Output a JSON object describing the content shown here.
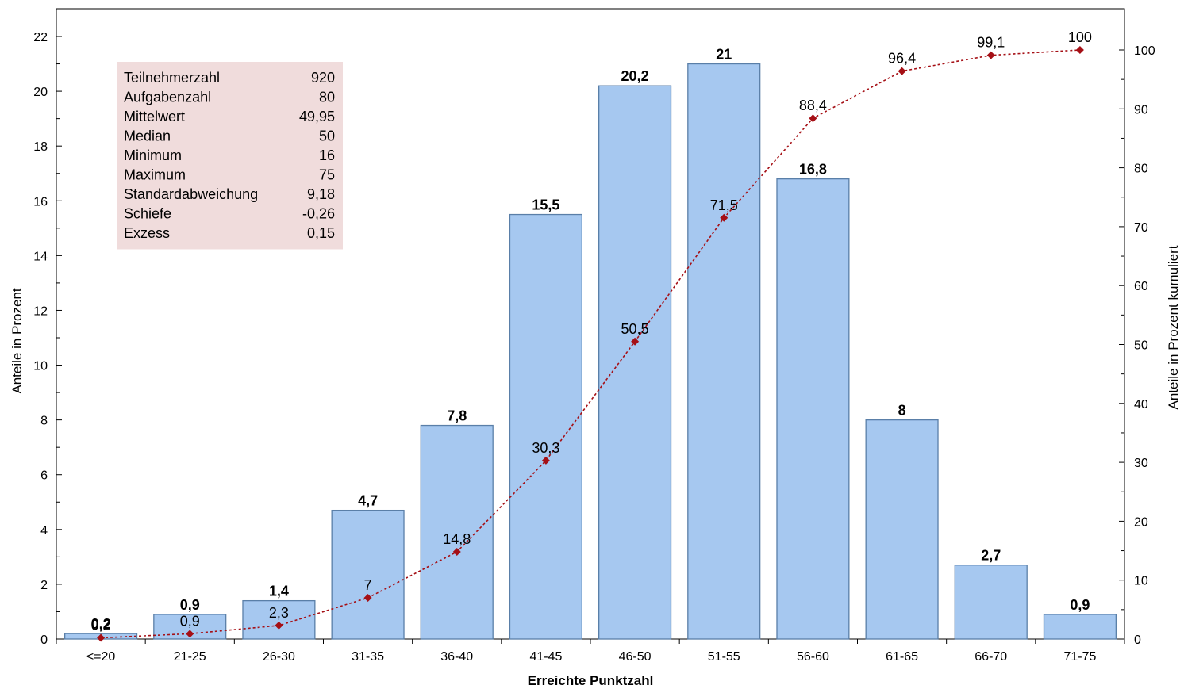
{
  "chart_data": {
    "type": "bar",
    "categories": [
      "<=20",
      "21-25",
      "26-30",
      "31-35",
      "36-40",
      "41-45",
      "46-50",
      "51-55",
      "56-60",
      "61-65",
      "66-70",
      "71-75"
    ],
    "series": [
      {
        "type": "bar",
        "axis": "left",
        "values": [
          0.2,
          0.9,
          1.4,
          4.7,
          7.8,
          15.5,
          20.2,
          21,
          16.8,
          8,
          2.7,
          0.9
        ],
        "labels": [
          "0,2",
          "0,9",
          "1,4",
          "4,7",
          "7,8",
          "15,5",
          "20,2",
          "21",
          "16,8",
          "8",
          "2,7",
          "0,9"
        ],
        "color": "#a6c8f0",
        "border_color": "#5a7fa8"
      },
      {
        "type": "line",
        "axis": "right",
        "values": [
          0.2,
          0.9,
          2.3,
          7,
          14.8,
          30.3,
          50.5,
          71.5,
          88.4,
          96.4,
          99.1,
          100
        ],
        "labels": [
          "0,2",
          "0,9",
          "2,3",
          "7",
          "14,8",
          "30,3",
          "50,5",
          "71,5",
          "88,4",
          "96,4",
          "99,1",
          "100"
        ],
        "color": "#a50f15",
        "style": "dotted",
        "marker": "diamond"
      }
    ],
    "xlabel": "Erreichte Punktzahl",
    "ylabel": "Anteile in Prozent",
    "y2label": "Anteile in Prozent kumuliert",
    "ylim": [
      0,
      22
    ],
    "yticks": [
      0,
      2,
      4,
      6,
      8,
      10,
      12,
      14,
      16,
      18,
      20,
      22
    ],
    "y2lim": [
      0,
      100
    ],
    "y2ticks": [
      0,
      10,
      20,
      30,
      40,
      50,
      60,
      70,
      80,
      90,
      100
    ],
    "grid": false,
    "stats_box": {
      "background": "#f0dcdc",
      "rows": [
        {
          "label": "Teilnehmerzahl",
          "value": "920"
        },
        {
          "label": "Aufgabenzahl",
          "value": "80"
        },
        {
          "label": "Mittelwert",
          "value": "49,95"
        },
        {
          "label": "Median",
          "value": "50"
        },
        {
          "label": "Minimum",
          "value": "16"
        },
        {
          "label": "Maximum",
          "value": "75"
        },
        {
          "label": "Standardabweichung",
          "value": "9,18"
        },
        {
          "label": "Schiefe",
          "value": "-0,26"
        },
        {
          "label": "Exzess",
          "value": "0,15"
        }
      ]
    }
  }
}
